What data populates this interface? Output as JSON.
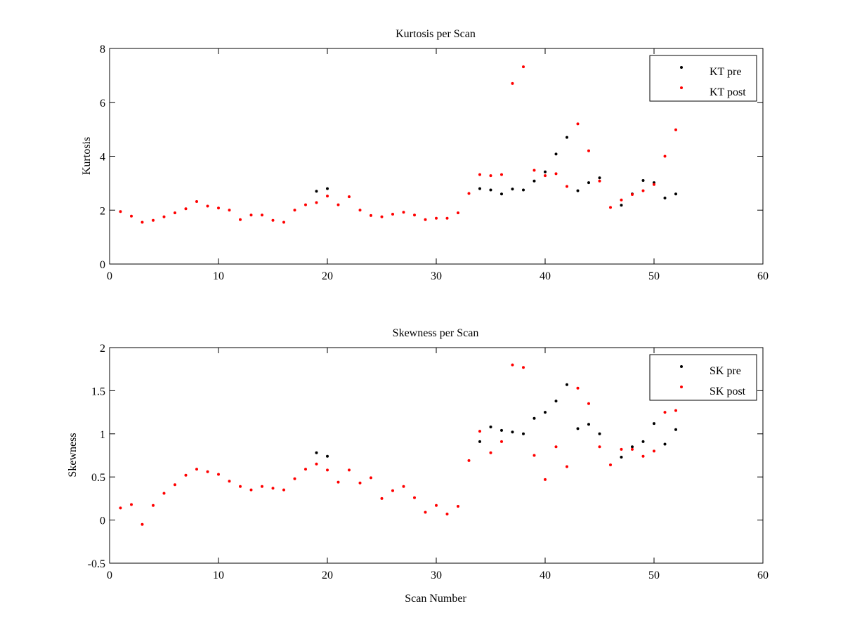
{
  "chart_data": [
    {
      "type": "scatter",
      "title": "Kurtosis per Scan",
      "xlabel": "",
      "ylabel": "Kurtosis",
      "xlim": [
        0,
        60
      ],
      "ylim": [
        0,
        8
      ],
      "xticks": [
        0,
        10,
        20,
        30,
        40,
        50,
        60
      ],
      "xtick_labels": [
        "0",
        "10",
        "20",
        "30",
        "40",
        "50",
        "60"
      ],
      "yticks": [
        0,
        2,
        4,
        6,
        8
      ],
      "ytick_labels": [
        "0",
        "2",
        "4",
        "6",
        "8"
      ],
      "grid": false,
      "legend": "top-right",
      "series": [
        {
          "name": "KT pre",
          "color": "#000000",
          "x": [
            19,
            20,
            34,
            35,
            36,
            37,
            38,
            39,
            40,
            41,
            42,
            43,
            44,
            45,
            47,
            48,
            49,
            50,
            51,
            52
          ],
          "y": [
            2.7,
            2.8,
            2.8,
            2.75,
            2.6,
            2.78,
            2.75,
            3.08,
            3.42,
            4.08,
            4.7,
            2.72,
            3.02,
            3.2,
            2.18,
            2.6,
            3.1,
            3.02,
            2.45,
            2.6
          ]
        },
        {
          "name": "KT post",
          "color": "#ff0000",
          "x": [
            1,
            2,
            3,
            4,
            5,
            6,
            7,
            8,
            9,
            10,
            11,
            12,
            13,
            14,
            15,
            16,
            17,
            18,
            19,
            20,
            21,
            22,
            23,
            24,
            25,
            26,
            27,
            28,
            29,
            30,
            31,
            32,
            33,
            34,
            35,
            36,
            37,
            38,
            39,
            40,
            41,
            42,
            43,
            44,
            45,
            46,
            47,
            48,
            49,
            50,
            51,
            52
          ],
          "y": [
            1.95,
            1.78,
            1.55,
            1.62,
            1.75,
            1.9,
            2.05,
            2.32,
            2.15,
            2.08,
            2.0,
            1.65,
            1.82,
            1.82,
            1.62,
            1.55,
            2.0,
            2.2,
            2.28,
            2.52,
            2.2,
            2.5,
            2.0,
            1.8,
            1.75,
            1.85,
            1.92,
            1.82,
            1.65,
            1.7,
            1.7,
            1.9,
            2.62,
            3.32,
            3.28,
            3.32,
            6.7,
            7.32,
            3.48,
            3.28,
            3.35,
            2.88,
            5.2,
            4.2,
            3.08,
            2.1,
            2.38,
            2.58,
            2.72,
            2.95,
            4.0,
            4.98
          ]
        }
      ]
    },
    {
      "type": "scatter",
      "title": "Skewness per Scan",
      "xlabel": "Scan Number",
      "ylabel": "Skewness",
      "xlim": [
        0,
        60
      ],
      "ylim": [
        -0.5,
        2
      ],
      "xticks": [
        0,
        10,
        20,
        30,
        40,
        50,
        60
      ],
      "xtick_labels": [
        "0",
        "10",
        "20",
        "30",
        "40",
        "50",
        "60"
      ],
      "yticks": [
        -0.5,
        0,
        0.5,
        1,
        1.5,
        2
      ],
      "ytick_labels": [
        "-0.5",
        "0",
        "0.5",
        "1",
        "1.5",
        "2"
      ],
      "grid": false,
      "legend": "top-right",
      "series": [
        {
          "name": "SK pre",
          "color": "#000000",
          "x": [
            19,
            20,
            34,
            35,
            36,
            37,
            38,
            39,
            40,
            41,
            42,
            43,
            44,
            45,
            47,
            48,
            49,
            50,
            51,
            52
          ],
          "y": [
            0.78,
            0.74,
            0.91,
            1.08,
            1.04,
            1.02,
            1.0,
            1.18,
            1.25,
            1.38,
            1.57,
            1.06,
            1.11,
            1.0,
            0.73,
            0.85,
            0.91,
            1.12,
            0.88,
            1.05
          ]
        },
        {
          "name": "SK post",
          "color": "#ff0000",
          "x": [
            1,
            2,
            3,
            4,
            5,
            6,
            7,
            8,
            9,
            10,
            11,
            12,
            13,
            14,
            15,
            16,
            17,
            18,
            19,
            20,
            21,
            22,
            23,
            24,
            25,
            26,
            27,
            28,
            29,
            30,
            31,
            32,
            33,
            34,
            35,
            36,
            37,
            38,
            39,
            40,
            41,
            42,
            43,
            44,
            45,
            46,
            47,
            48,
            49,
            50,
            51,
            52
          ],
          "y": [
            0.14,
            0.18,
            -0.05,
            0.17,
            0.31,
            0.41,
            0.52,
            0.59,
            0.56,
            0.53,
            0.45,
            0.39,
            0.35,
            0.39,
            0.37,
            0.35,
            0.48,
            0.59,
            0.65,
            0.58,
            0.44,
            0.58,
            0.43,
            0.49,
            0.25,
            0.34,
            0.39,
            0.26,
            0.09,
            0.17,
            0.07,
            0.16,
            0.69,
            1.03,
            0.78,
            0.91,
            1.8,
            1.77,
            0.75,
            0.47,
            0.85,
            0.62,
            1.53,
            1.35,
            0.85,
            0.64,
            0.82,
            0.82,
            0.74,
            0.8,
            1.25,
            1.27
          ]
        }
      ]
    }
  ]
}
